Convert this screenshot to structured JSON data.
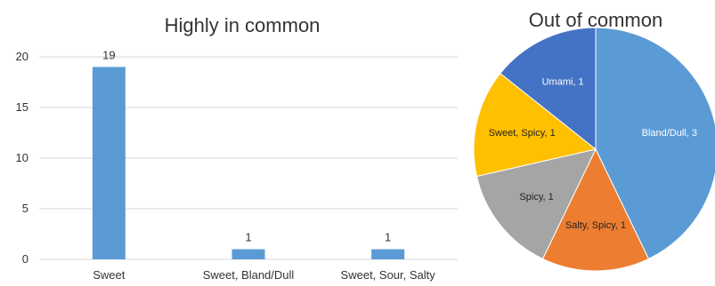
{
  "chart_data": [
    {
      "type": "bar",
      "title": "Highly in common",
      "categories": [
        "Sweet",
        "Sweet, Bland/Dull",
        "Sweet, Sour, Salty"
      ],
      "values": [
        19,
        1,
        1
      ],
      "data_labels": [
        "19",
        "1",
        "1"
      ],
      "yticks": [
        0,
        5,
        10,
        15,
        20
      ],
      "ytick_labels": [
        "0",
        "5",
        "10",
        "15",
        "20"
      ],
      "ylim": [
        0,
        20
      ],
      "grid": true,
      "bar_color": "#5b9bd5",
      "grid_color": "#d9d9d9"
    },
    {
      "type": "pie",
      "title": "Out of common",
      "slices": [
        {
          "label": "Bland/Dull, 3",
          "value": 3,
          "color": "#5b9bd5",
          "text_color": "#ffffff"
        },
        {
          "label": "Salty, Spicy, 1",
          "value": 1,
          "color": "#ed7d31",
          "text_color": "#222222"
        },
        {
          "label": "Spicy, 1",
          "value": 1,
          "color": "#a5a5a5",
          "text_color": "#222222"
        },
        {
          "label": "Sweet, Spicy, 1",
          "value": 1,
          "color": "#ffc000",
          "text_color": "#222222"
        },
        {
          "label": "Umami, 1",
          "value": 1,
          "color": "#4472c4",
          "text_color": "#ffffff"
        }
      ]
    }
  ]
}
